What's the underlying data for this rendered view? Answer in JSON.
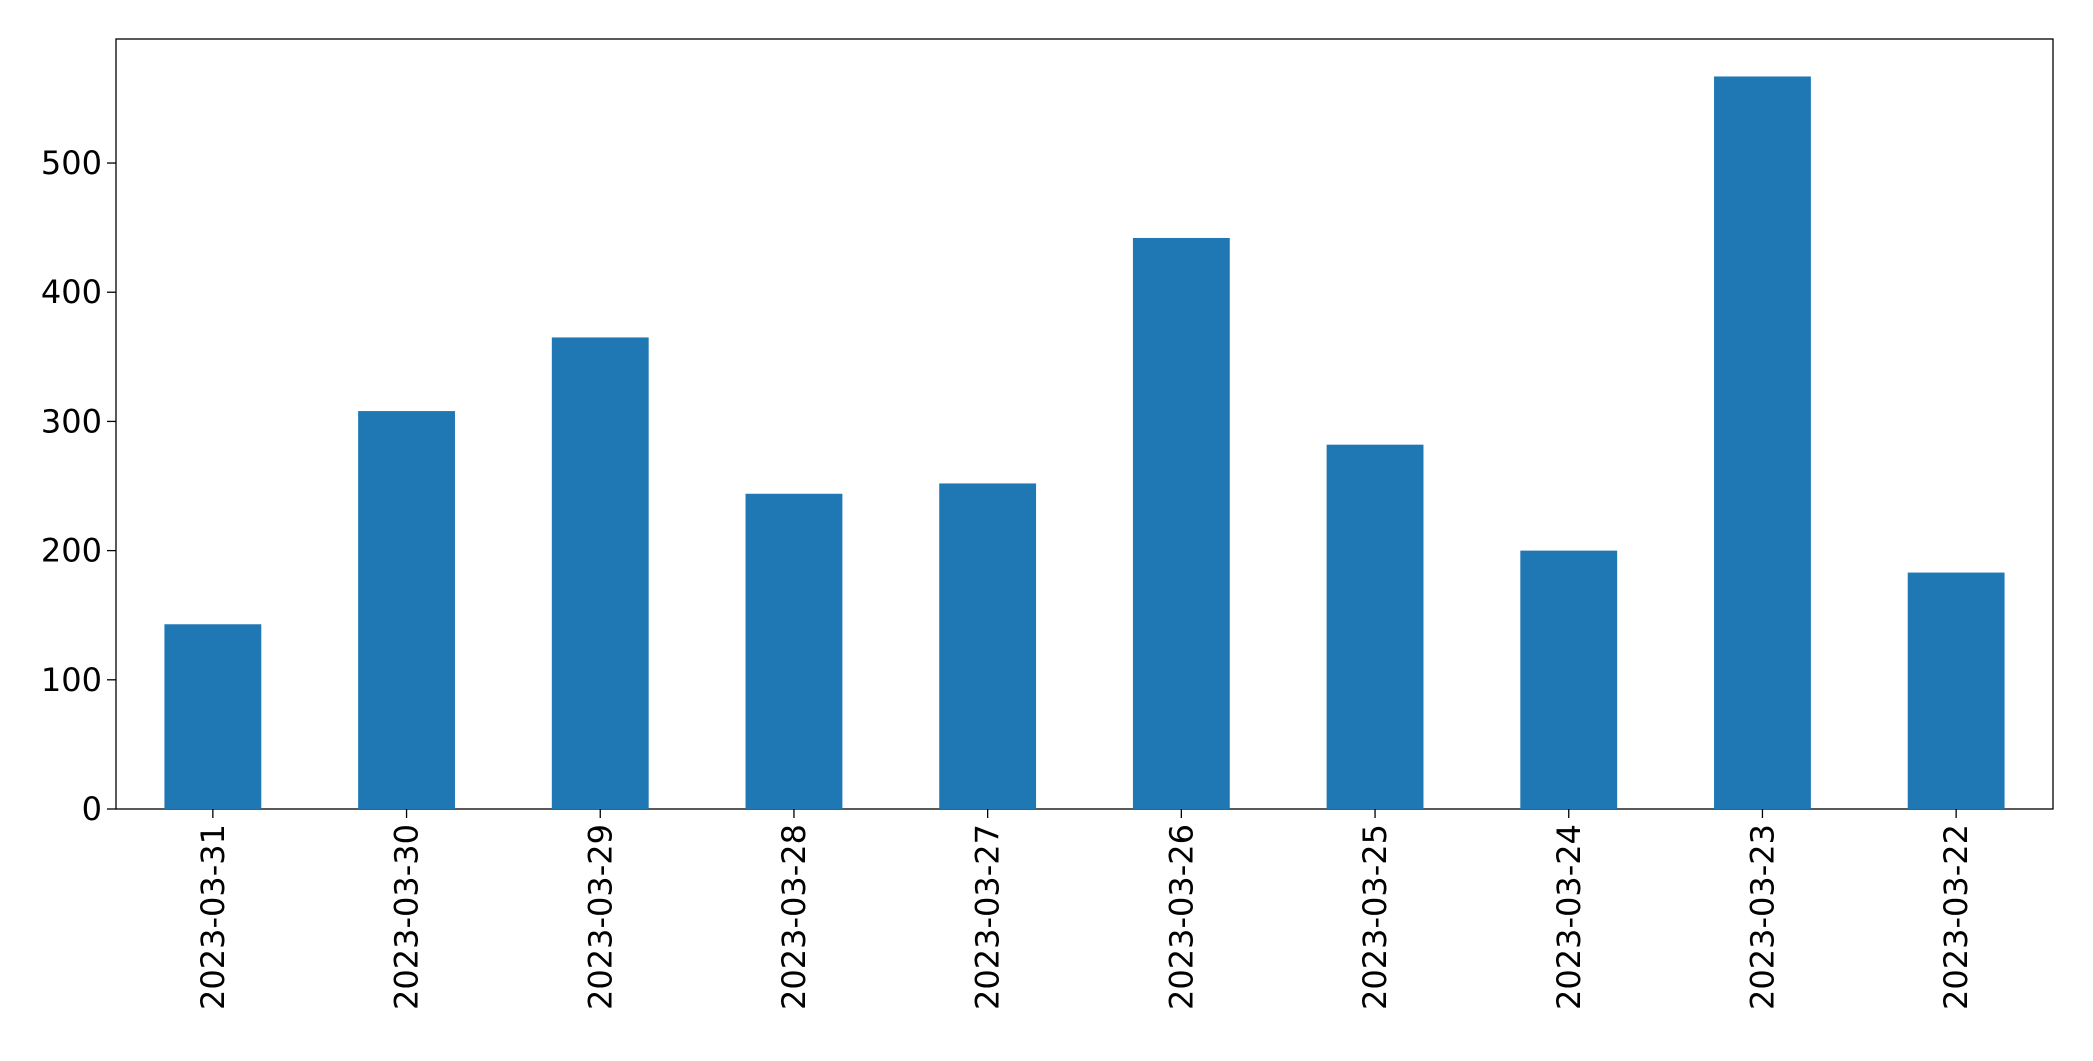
{
  "chart_data": {
    "type": "bar",
    "categories": [
      "2023-03-31",
      "2023-03-30",
      "2023-03-29",
      "2023-03-28",
      "2023-03-27",
      "2023-03-26",
      "2023-03-25",
      "2023-03-24",
      "2023-03-23",
      "2023-03-22"
    ],
    "values": [
      143,
      308,
      365,
      244,
      252,
      442,
      282,
      200,
      567,
      183
    ],
    "color": "#1f77b4",
    "ylim": [
      0,
      596
    ],
    "yticks": [
      0,
      100,
      200,
      300,
      400,
      500
    ],
    "grid": false
  }
}
